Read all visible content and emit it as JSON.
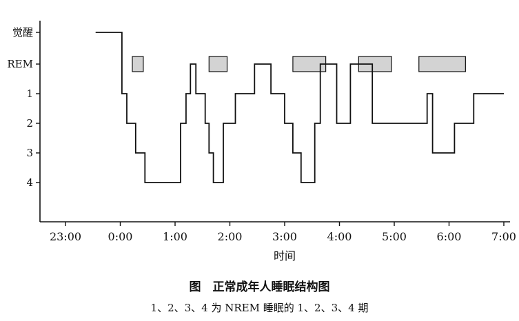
{
  "chart_data": {
    "type": "line",
    "title": "图　正常成年人睡眠结构图",
    "subtitle": "1、2、3、4 为 NREM 睡眠的 1、2、3、4 期",
    "xlabel": "时间",
    "ylabel": "",
    "x_ticks": [
      "23:00",
      "0:00",
      "1:00",
      "2:00",
      "3:00",
      "4:00",
      "5:00",
      "6:00",
      "7:00"
    ],
    "y_ticks": [
      "觉醒",
      "REM",
      "1",
      "2",
      "3",
      "4"
    ],
    "x_range_hours": [
      -0.45,
      7.0
    ],
    "step_type": "post",
    "series": [
      {
        "x": [
          -0.45,
          0.03,
          0.03,
          0.12,
          0.12,
          0.28,
          0.28,
          0.45,
          0.45,
          1.1,
          1.1,
          1.2,
          1.2,
          1.28,
          1.28,
          1.38,
          1.38,
          1.55,
          1.55,
          1.62,
          1.62,
          1.7,
          1.7,
          1.88,
          1.88,
          2.1,
          2.1,
          2.45,
          2.45,
          2.75,
          2.75,
          3.0,
          3.0,
          3.15,
          3.15,
          3.3,
          3.3,
          3.55,
          3.55,
          3.65,
          3.65,
          3.95,
          3.95,
          4.2,
          4.2,
          4.6,
          4.6,
          5.6,
          5.6,
          5.7,
          5.7,
          6.1,
          6.1,
          6.45,
          6.45,
          7.0
        ],
        "y": [
          0,
          0,
          2,
          2,
          3,
          3,
          4,
          4,
          5,
          5,
          3,
          3,
          2,
          2,
          1,
          1,
          2,
          2,
          3,
          3,
          4,
          4,
          5,
          5,
          3,
          3,
          2,
          2,
          1,
          1,
          2,
          2,
          3,
          3,
          4,
          4,
          5,
          5,
          3,
          3,
          1,
          1,
          3,
          3,
          1,
          1,
          3,
          3,
          2,
          2,
          4,
          4,
          3,
          3,
          2,
          2
        ],
        "y_note": "0=觉醒, 1=REM, 2=1期, 3=2期, 4=3期, 5=4期"
      }
    ],
    "shaded_rem_periods": [
      {
        "start": 0.22,
        "end": 0.42
      },
      {
        "start": 1.62,
        "end": 1.95
      },
      {
        "start": 3.15,
        "end": 3.75
      },
      {
        "start": 4.35,
        "end": 4.95
      },
      {
        "start": 5.45,
        "end": 6.3
      }
    ],
    "grid": false,
    "colors": {
      "line": "#111111",
      "rem_fill": "#d3d3d3"
    }
  }
}
